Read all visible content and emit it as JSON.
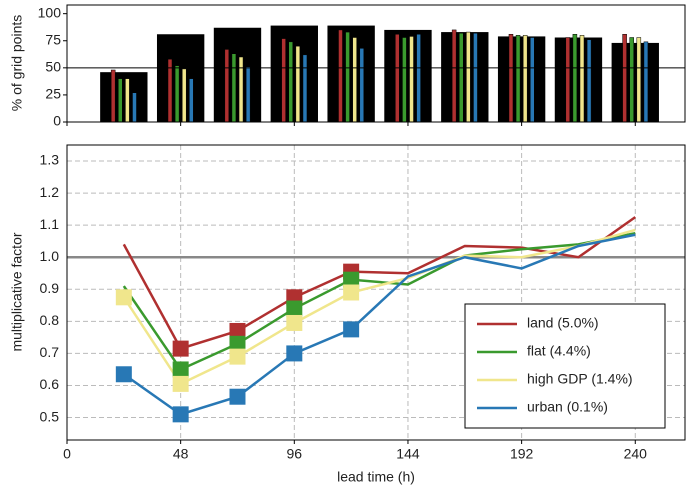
{
  "chart_data": [
    {
      "type": "bar",
      "ylabel": "% of grid points",
      "x": [
        24,
        48,
        72,
        96,
        120,
        144,
        168,
        192,
        216,
        240
      ],
      "values": [
        46,
        81,
        87,
        89,
        89,
        85,
        83,
        79,
        78,
        73
      ],
      "color": "#000000",
      "series": [
        {
          "color": "#b03030",
          "values": [
            48,
            58,
            67,
            77,
            85,
            81,
            85,
            81,
            78,
            81
          ]
        },
        {
          "color": "#3a9a2e",
          "values": [
            40,
            52,
            63,
            74,
            83,
            78,
            82,
            80,
            81,
            78
          ]
        },
        {
          "color": "#f0e68c",
          "values": [
            40,
            49,
            60,
            70,
            78,
            79,
            83,
            80,
            80,
            78
          ]
        },
        {
          "color": "#2878b5",
          "values": [
            27,
            40,
            51,
            62,
            68,
            81,
            82,
            78,
            76,
            74
          ]
        }
      ],
      "xlim": [
        0,
        261
      ],
      "ylim": [
        0,
        108
      ],
      "yticks": [
        0,
        25,
        50,
        75,
        100
      ],
      "hline": 50
    },
    {
      "type": "line",
      "xlabel": "lead time (h)",
      "ylabel": "multiplicative factor",
      "x": [
        24,
        48,
        72,
        96,
        120,
        144,
        168,
        192,
        216,
        240
      ],
      "series": [
        {
          "name": "land (5.0%)",
          "color": "#b03030",
          "values": [
            1.04,
            0.715,
            0.77,
            0.875,
            0.955,
            0.95,
            1.035,
            1.03,
            1.0,
            1.125
          ],
          "markers": [
            false,
            true,
            true,
            true,
            true,
            false,
            false,
            false,
            false,
            false
          ]
        },
        {
          "name": "flat (4.4%)",
          "color": "#3a9a2e",
          "values": [
            0.91,
            0.65,
            0.73,
            0.84,
            0.93,
            0.915,
            1.005,
            1.025,
            1.04,
            1.075
          ],
          "markers": [
            false,
            true,
            true,
            true,
            true,
            false,
            false,
            false,
            false,
            false
          ]
        },
        {
          "name": "high GDP (1.4%)",
          "color": "#f0e68c",
          "values": [
            0.875,
            0.605,
            0.69,
            0.795,
            0.89,
            0.935,
            1.005,
            1.0,
            1.035,
            1.085
          ],
          "markers": [
            true,
            true,
            true,
            true,
            true,
            false,
            false,
            false,
            false,
            false
          ]
        },
        {
          "name": "urban (0.1%)",
          "color": "#2878b5",
          "values": [
            0.635,
            0.51,
            0.565,
            0.7,
            0.775,
            0.94,
            1.0,
            0.965,
            1.035,
            1.07
          ],
          "markers": [
            true,
            true,
            true,
            true,
            true,
            false,
            false,
            false,
            false,
            false
          ]
        }
      ],
      "xlim": [
        0,
        261
      ],
      "xticks": [
        0,
        48,
        96,
        144,
        192,
        240
      ],
      "ylim": [
        0.43,
        1.35
      ],
      "yticks": [
        0.5,
        0.6,
        0.7,
        0.8,
        0.9,
        {
          "value": 1,
          "label": "1.0"
        },
        1.1,
        1.2,
        1.3
      ],
      "hline": 1,
      "grid": true,
      "legend": "bottom-right"
    }
  ]
}
